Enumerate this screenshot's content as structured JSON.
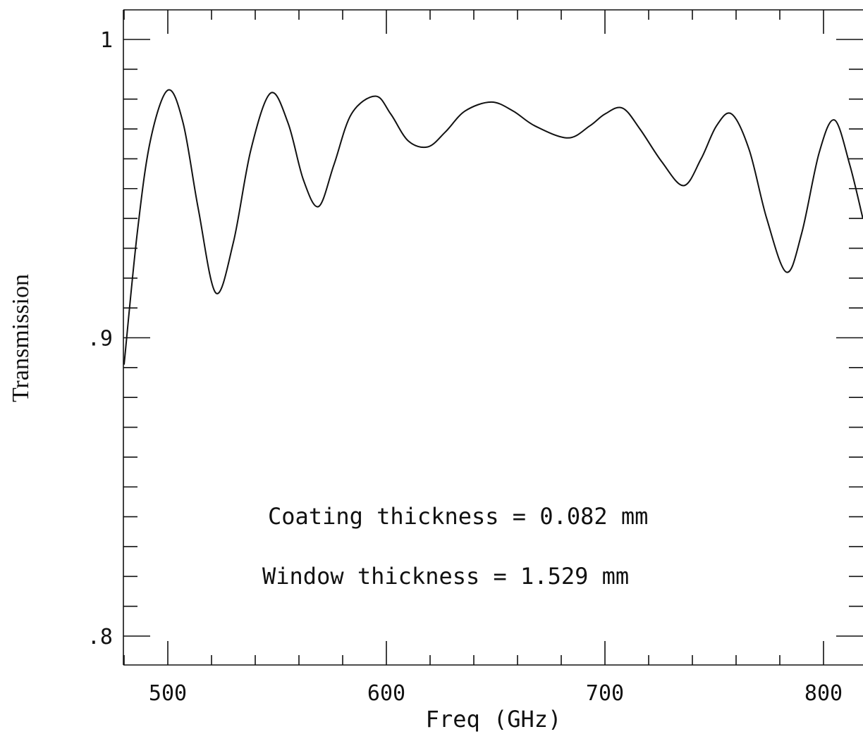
{
  "chart_data": {
    "type": "line",
    "title": "",
    "xlabel": "Freq (GHz)",
    "ylabel": "Transmission",
    "xlim": [
      480,
      820
    ],
    "ylim": [
      0.79,
      1.01
    ],
    "x_ticks": [
      500,
      600,
      700,
      800
    ],
    "x_tick_labels": [
      "500",
      "600",
      "700",
      "800"
    ],
    "y_ticks": [
      0.8,
      0.9,
      1.0
    ],
    "y_tick_labels": [
      ".8",
      ".9",
      "1"
    ],
    "annotations": [
      "Coating thickness = 0.082 mm",
      "Window thickness = 1.529 mm"
    ],
    "grid": false,
    "series": [
      {
        "x": [
          480,
          486,
          492,
          500,
          507,
          514,
          522,
          530,
          538,
          547,
          555,
          562,
          569,
          576,
          584,
          595,
          602,
          610,
          619,
          627,
          636,
          648,
          658,
          668,
          683,
          693,
          700,
          708,
          716,
          726,
          736,
          744,
          751,
          758,
          766,
          774,
          783,
          790,
          798,
          805,
          812,
          818
        ],
        "y": [
          0.891,
          0.935,
          0.966,
          0.983,
          0.972,
          0.943,
          0.915,
          0.932,
          0.963,
          0.982,
          0.972,
          0.953,
          0.944,
          0.958,
          0.975,
          0.981,
          0.975,
          0.966,
          0.964,
          0.969,
          0.976,
          0.979,
          0.976,
          0.971,
          0.967,
          0.971,
          0.975,
          0.977,
          0.97,
          0.959,
          0.951,
          0.96,
          0.971,
          0.975,
          0.963,
          0.94,
          0.922,
          0.935,
          0.962,
          0.973,
          0.958,
          0.94
        ]
      }
    ]
  }
}
